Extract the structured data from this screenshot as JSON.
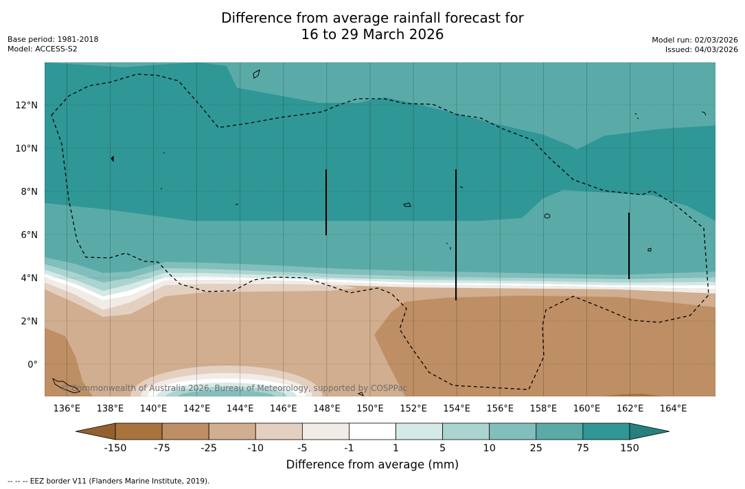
{
  "title": {
    "line1": "Difference from average rainfall forecast for",
    "line2": "16 to 29 March 2026"
  },
  "meta": {
    "base_period": "Base period: 1981-2018",
    "model": "Model: ACCESS-S2",
    "model_run": "Model run: 02/03/2026",
    "issued": "Issued: 04/03/2026"
  },
  "map": {
    "lon_labels": [
      "136°E",
      "138°E",
      "140°E",
      "142°E",
      "144°E",
      "146°E",
      "148°E",
      "150°E",
      "152°E",
      "154°E",
      "156°E",
      "158°E",
      "160°E",
      "162°E",
      "164°E"
    ],
    "lat_labels": [
      "12°N",
      "10°N",
      "8°N",
      "6°N",
      "4°N",
      "2°N",
      "0°"
    ],
    "copyright": "© Commonwealth of Australia 2026, Bureau of Meteorology, supported by COSPPac"
  },
  "colorbar": {
    "labels": [
      "-150",
      "-75",
      "-25",
      "-10",
      "-5",
      "-1",
      "1",
      "5",
      "10",
      "25",
      "75",
      "150"
    ],
    "colors": [
      "#a8733c",
      "#be8f64",
      "#d1ae8f",
      "#e3d0c1",
      "#f2ece7",
      "#ffffff",
      "#d5e9e7",
      "#abd4d1",
      "#82bfbc",
      "#5aaba8",
      "#2f9795"
    ],
    "under_color": "#946030",
    "over_color": "#27807e",
    "title": "Difference from average (mm)"
  },
  "footnote": "--  --  -- EEZ border V11 (Flanders Marine Institute, 2019)."
}
